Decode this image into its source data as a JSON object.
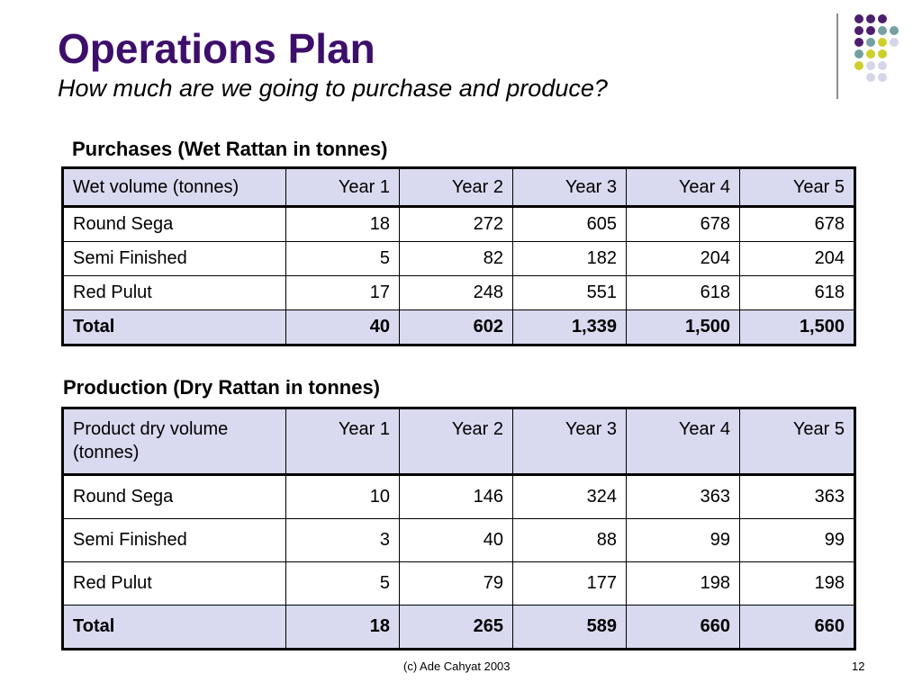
{
  "slide": {
    "title": "Operations Plan",
    "subtitle": "How much are we going to purchase and produce?",
    "footer_left": "(c) Ade Cahyat 2003",
    "page_number": "12"
  },
  "decoration": {
    "dot_colors": {
      "purple": "#4b1e6e",
      "teal": "#74a0a3",
      "yellow": "#cfcf2a",
      "lavender": "#d6d6ea"
    }
  },
  "purchases": {
    "heading": "Purchases (Wet Rattan in tonnes)",
    "header_label": "Wet volume (tonnes)",
    "years": [
      "Year 1",
      "Year 2",
      "Year 3",
      "Year 4",
      "Year 5"
    ],
    "rows": [
      {
        "label": "Round Sega",
        "values": [
          "18",
          "272",
          "605",
          "678",
          "678"
        ]
      },
      {
        "label": "Semi Finished",
        "values": [
          "5",
          "82",
          "182",
          "204",
          "204"
        ]
      },
      {
        "label": "Red Pulut",
        "values": [
          "17",
          "248",
          "551",
          "618",
          "618"
        ]
      }
    ],
    "total": {
      "label": "Total",
      "values": [
        "40",
        "602",
        "1,339",
        "1,500",
        "1,500"
      ]
    }
  },
  "production": {
    "heading": "Production (Dry Rattan in tonnes)",
    "header_label": "Product dry volume (tonnes)",
    "years": [
      "Year 1",
      "Year 2",
      "Year 3",
      "Year 4",
      "Year 5"
    ],
    "rows": [
      {
        "label": "Round Sega",
        "values": [
          "10",
          "146",
          "324",
          "363",
          "363"
        ]
      },
      {
        "label": "Semi Finished",
        "values": [
          "3",
          "40",
          "88",
          "99",
          "99"
        ]
      },
      {
        "label": "Red Pulut",
        "values": [
          "5",
          "79",
          "177",
          "198",
          "198"
        ]
      }
    ],
    "total": {
      "label": "Total",
      "values": [
        "18",
        "265",
        "589",
        "660",
        "660"
      ]
    }
  }
}
